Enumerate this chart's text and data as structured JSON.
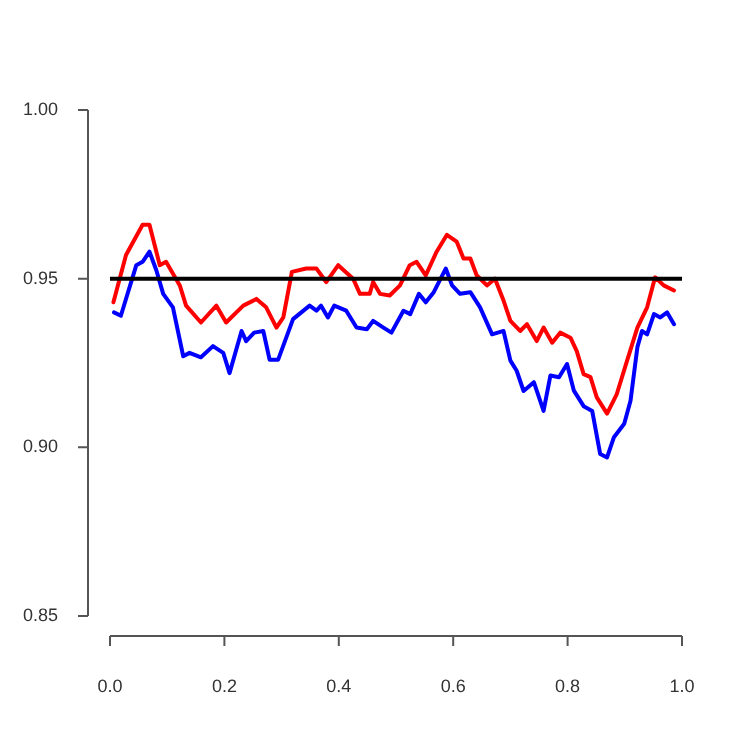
{
  "chart_data": {
    "type": "line",
    "xlim": [
      0,
      1
    ],
    "xticks": [
      {
        "value": 0,
        "label": "0.0"
      },
      {
        "value": 0.2,
        "label": "0.2"
      },
      {
        "value": 0.4,
        "label": "0.4"
      },
      {
        "value": 0.6,
        "label": "0.6"
      },
      {
        "value": 0.8,
        "label": "0.8"
      },
      {
        "value": 1,
        "label": "1.0"
      }
    ],
    "ylim": [
      0.85,
      1
    ],
    "yticks": [
      {
        "value": 0.85,
        "label": "0.85"
      },
      {
        "value": 0.9,
        "label": "0.90"
      },
      {
        "value": 0.95,
        "label": "0.95"
      },
      {
        "value": 1,
        "label": "1.00"
      }
    ],
    "grid": false,
    "legend": false,
    "marker": "none",
    "line_style": "solid",
    "ref_lines": [
      {
        "axis": "y",
        "value": 0.95,
        "color": "#000000"
      }
    ],
    "series": [
      {
        "color": "#ff0000",
        "x": [
          0.006,
          0.028,
          0.057,
          0.069,
          0.087,
          0.098,
          0.122,
          0.133,
          0.159,
          0.186,
          0.203,
          0.233,
          0.256,
          0.273,
          0.291,
          0.303,
          0.318,
          0.343,
          0.361,
          0.378,
          0.399,
          0.425,
          0.437,
          0.454,
          0.46,
          0.472,
          0.489,
          0.507,
          0.524,
          0.536,
          0.552,
          0.571,
          0.589,
          0.606,
          0.618,
          0.63,
          0.641,
          0.659,
          0.673,
          0.688,
          0.7,
          0.717,
          0.729,
          0.746,
          0.758,
          0.773,
          0.787,
          0.805,
          0.816,
          0.828,
          0.84,
          0.851,
          0.869,
          0.886,
          0.904,
          0.922,
          0.939,
          0.953,
          0.968,
          0.986
        ],
        "values": [
          0.943,
          0.957,
          0.966,
          0.966,
          0.954,
          0.955,
          0.948,
          0.942,
          0.937,
          0.942,
          0.937,
          0.942,
          0.944,
          0.9415,
          0.9355,
          0.9385,
          0.952,
          0.953,
          0.953,
          0.949,
          0.954,
          0.95,
          0.9455,
          0.9455,
          0.949,
          0.9455,
          0.945,
          0.948,
          0.954,
          0.955,
          0.951,
          0.958,
          0.963,
          0.961,
          0.956,
          0.956,
          0.951,
          0.948,
          0.95,
          0.9435,
          0.9375,
          0.9345,
          0.9365,
          0.9315,
          0.9355,
          0.931,
          0.934,
          0.9325,
          0.9285,
          0.9217,
          0.9208,
          0.9148,
          0.91,
          0.9158,
          0.9257,
          0.9355,
          0.9415,
          0.9504,
          0.948,
          0.9465
        ]
      },
      {
        "color": "#0000ff",
        "x": [
          0.007,
          0.019,
          0.046,
          0.057,
          0.069,
          0.081,
          0.093,
          0.11,
          0.128,
          0.139,
          0.159,
          0.18,
          0.198,
          0.209,
          0.23,
          0.238,
          0.252,
          0.268,
          0.279,
          0.294,
          0.32,
          0.349,
          0.361,
          0.369,
          0.381,
          0.392,
          0.413,
          0.431,
          0.449,
          0.46,
          0.478,
          0.492,
          0.513,
          0.525,
          0.54,
          0.552,
          0.566,
          0.587,
          0.598,
          0.612,
          0.63,
          0.647,
          0.668,
          0.688,
          0.7,
          0.711,
          0.723,
          0.741,
          0.758,
          0.77,
          0.785,
          0.799,
          0.811,
          0.828,
          0.843,
          0.857,
          0.869,
          0.881,
          0.899,
          0.91,
          0.922,
          0.93,
          0.939,
          0.951,
          0.962,
          0.974,
          0.986
        ],
        "values": [
          0.94,
          0.939,
          0.954,
          0.955,
          0.958,
          0.9525,
          0.9455,
          0.9415,
          0.927,
          0.928,
          0.9267,
          0.93,
          0.928,
          0.922,
          0.9345,
          0.9315,
          0.934,
          0.9345,
          0.926,
          0.926,
          0.938,
          0.942,
          0.9405,
          0.942,
          0.9385,
          0.942,
          0.9405,
          0.9355,
          0.935,
          0.9375,
          0.9355,
          0.934,
          0.9405,
          0.9395,
          0.9455,
          0.943,
          0.946,
          0.953,
          0.948,
          0.9455,
          0.946,
          0.9415,
          0.9335,
          0.9345,
          0.9257,
          0.9227,
          0.9167,
          0.9193,
          0.9108,
          0.9213,
          0.9208,
          0.9247,
          0.9168,
          0.9122,
          0.9108,
          0.898,
          0.897,
          0.903,
          0.907,
          0.9138,
          0.9297,
          0.9345,
          0.9335,
          0.9395,
          0.9385,
          0.94,
          0.9365
        ]
      }
    ]
  }
}
